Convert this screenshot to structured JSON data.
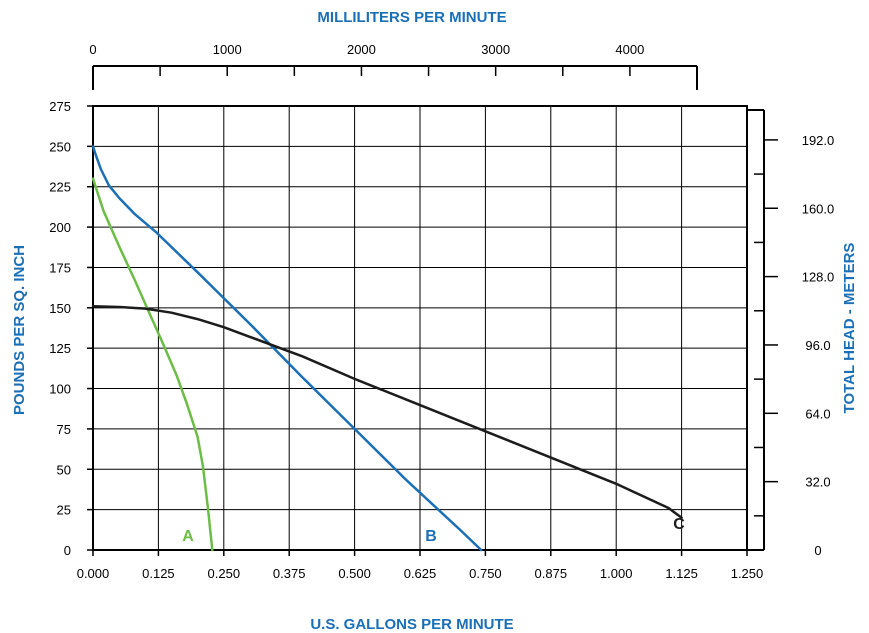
{
  "chart_data": {
    "type": "line",
    "title": "",
    "top_axis": {
      "label": "MILLILITERS PER MINUTE",
      "ticks": [
        0,
        1000,
        2000,
        3000,
        4000
      ],
      "tick_labels": [
        "0",
        "1000",
        "2000",
        "3000",
        "4000"
      ],
      "range": [
        0,
        4500
      ]
    },
    "xlabel": "U.S. GALLONS PER MINUTE",
    "x_ticks": [
      0,
      0.125,
      0.25,
      0.375,
      0.5,
      0.625,
      0.75,
      0.875,
      1.0,
      1.125,
      1.25
    ],
    "x_tick_labels": [
      "0.000",
      "0.125",
      "0.250",
      "0.375",
      "0.500",
      "0.625",
      "0.750",
      "0.875",
      "1.000",
      "1.125",
      "1.250"
    ],
    "xlim": [
      0,
      1.25
    ],
    "ylabel": "POUNDS PER SQ. INCH",
    "y_ticks": [
      0,
      25,
      50,
      75,
      100,
      125,
      150,
      175,
      200,
      225,
      250,
      275
    ],
    "y_tick_labels": [
      "0",
      "25",
      "50",
      "75",
      "100",
      "125",
      "150",
      "175",
      "200",
      "225",
      "250",
      "275"
    ],
    "ylim": [
      0,
      275
    ],
    "y2label": "TOTAL HEAD - METERS",
    "y2_ticks": [
      0,
      32,
      64,
      96,
      128,
      160,
      192
    ],
    "y2_tick_labels": [
      "0",
      "32.0",
      "64.0",
      "96.0",
      "128.0",
      "160.0",
      "192.0"
    ],
    "y2_range": [
      0,
      206
    ],
    "grid": true,
    "colors": {
      "title": "#1a6fb6",
      "A": "#6cbd45",
      "B": "#1a6fb6",
      "C": "#1c1c1c"
    },
    "series": [
      {
        "name": "A",
        "x": [
          0.0,
          0.02,
          0.05,
          0.08,
          0.11,
          0.135,
          0.16,
          0.18,
          0.2,
          0.21,
          0.22,
          0.228
        ],
        "y": [
          230,
          210,
          188,
          167,
          145,
          127,
          108,
          90,
          70,
          52,
          25,
          0
        ]
      },
      {
        "name": "B",
        "x": [
          0.0,
          0.005,
          0.015,
          0.03,
          0.05,
          0.08,
          0.12,
          0.2,
          0.3,
          0.4,
          0.5,
          0.6,
          0.7,
          0.742
        ],
        "y": [
          250,
          245,
          236,
          226,
          218,
          208,
          197,
          172,
          140,
          107,
          75,
          43,
          13,
          0
        ]
      },
      {
        "name": "C",
        "x": [
          0.0,
          0.05,
          0.1,
          0.15,
          0.2,
          0.25,
          0.3,
          0.4,
          0.5,
          0.6,
          0.7,
          0.8,
          0.9,
          1.0,
          1.1,
          1.125
        ],
        "y": [
          151,
          150.5,
          149.5,
          147,
          143,
          138,
          132,
          120,
          106,
          93,
          80,
          67,
          54,
          41,
          26,
          20
        ]
      }
    ]
  }
}
